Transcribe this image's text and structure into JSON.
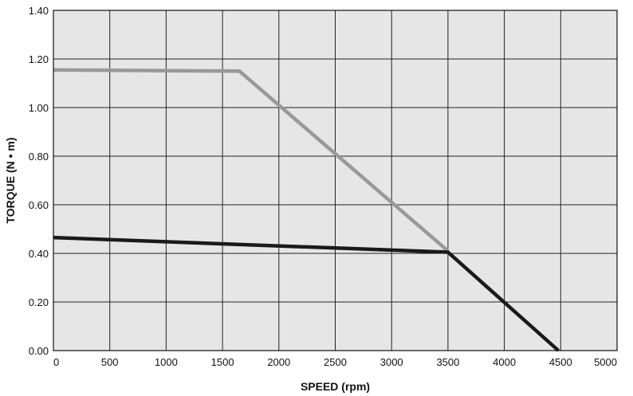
{
  "chart_data": {
    "type": "line",
    "xlabel": "SPEED (rpm)",
    "ylabel": "TORQUE (N • m)",
    "xlim": [
      0,
      5000
    ],
    "ylim": [
      0,
      1.4
    ],
    "x_ticks": [
      0,
      500,
      1000,
      1500,
      2000,
      2500,
      3000,
      3500,
      4000,
      4500,
      5000
    ],
    "y_ticks": [
      0,
      0.2,
      0.4,
      0.6,
      0.8,
      1.0,
      1.2,
      1.4
    ],
    "x_tick_labels": [
      "0",
      "500",
      "1000",
      "1500",
      "2000",
      "2500",
      "3000",
      "3500",
      "4000",
      "4500",
      "5000"
    ],
    "y_tick_labels": [
      "0.00",
      "0.20",
      "0.40",
      "0.60",
      "0.80",
      "1.00",
      "1.20",
      "1.40"
    ],
    "grid": true,
    "background_color": "#e6e6e6",
    "series": [
      {
        "color": "#999999",
        "points": [
          [
            0,
            1.155
          ],
          [
            1650,
            1.15
          ],
          [
            3500,
            0.41
          ]
        ]
      },
      {
        "color": "#1a1a1a",
        "points": [
          [
            0,
            0.465
          ],
          [
            3500,
            0.405
          ],
          [
            4480,
            0.0
          ]
        ]
      }
    ]
  }
}
